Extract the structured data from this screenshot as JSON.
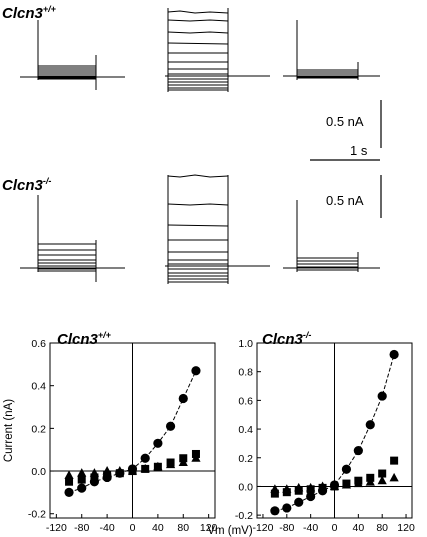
{
  "traces": {
    "wt_label": "Clcn3",
    "wt_sup": "+/+",
    "ko_label": "Clcn3",
    "ko_sup": "-/-",
    "scale_current_wt": "0.5 nA",
    "scale_time": "1 s",
    "scale_current_ko": "0.5 nA"
  },
  "chart_data": [
    {
      "type": "scatter",
      "title": "Clcn3",
      "title_sup": "+/+",
      "xlabel": "Vm (mV)",
      "ylabel": "Current (nA)",
      "xlim": [
        -130,
        130
      ],
      "ylim": [
        -0.22,
        0.6
      ],
      "xticks": [
        -120,
        -80,
        -40,
        0,
        40,
        80,
        120
      ],
      "yticks": [
        -0.2,
        0.0,
        0.2,
        0.4,
        0.6
      ],
      "ytick_labels": [
        "-0.2",
        "0.0",
        "0.2",
        "0.4",
        "0.6"
      ],
      "series": [
        {
          "marker": "circle",
          "connected": true,
          "x": [
            -100,
            -80,
            -60,
            -40,
            -20,
            0,
            20,
            40,
            60,
            80,
            100
          ],
          "y": [
            -0.1,
            -0.08,
            -0.05,
            -0.03,
            -0.01,
            0.01,
            0.06,
            0.13,
            0.21,
            0.34,
            0.47
          ]
        },
        {
          "marker": "square",
          "connected": false,
          "x": [
            -100,
            -80,
            -60,
            -40,
            -20,
            0,
            20,
            40,
            60,
            80,
            100
          ],
          "y": [
            -0.05,
            -0.04,
            -0.03,
            -0.02,
            -0.01,
            0.0,
            0.01,
            0.02,
            0.04,
            0.06,
            0.08
          ]
        },
        {
          "marker": "triangle",
          "connected": false,
          "x": [
            -100,
            -80,
            -60,
            -40,
            -20,
            0,
            20,
            40,
            60,
            80,
            100
          ],
          "y": [
            -0.02,
            -0.01,
            -0.01,
            0.0,
            0.0,
            0.0,
            0.01,
            0.02,
            0.03,
            0.04,
            0.06
          ]
        }
      ]
    },
    {
      "type": "scatter",
      "title": "Clcn3",
      "title_sup": "-/-",
      "xlabel": "Vm (mV)",
      "ylabel": "",
      "xlim": [
        -130,
        130
      ],
      "ylim": [
        -0.22,
        1.0
      ],
      "xticks": [
        -120,
        -80,
        -40,
        0,
        40,
        80,
        120
      ],
      "yticks": [
        -0.2,
        0.0,
        0.2,
        0.4,
        0.6,
        0.8,
        1.0
      ],
      "ytick_labels": [
        "-0.2",
        "0.0",
        "0.2",
        "0.4",
        "0.6",
        "0.8",
        "1.0"
      ],
      "series": [
        {
          "marker": "circle",
          "connected": true,
          "x": [
            -100,
            -80,
            -60,
            -40,
            -20,
            0,
            20,
            40,
            60,
            80,
            100
          ],
          "y": [
            -0.17,
            -0.15,
            -0.11,
            -0.07,
            -0.03,
            0.01,
            0.12,
            0.25,
            0.43,
            0.63,
            0.92
          ]
        },
        {
          "marker": "square",
          "connected": false,
          "x": [
            -100,
            -80,
            -60,
            -40,
            -20,
            0,
            20,
            40,
            60,
            80,
            100
          ],
          "y": [
            -0.05,
            -0.04,
            -0.03,
            -0.02,
            -0.01,
            0.0,
            0.02,
            0.04,
            0.06,
            0.09,
            0.18
          ]
        },
        {
          "marker": "triangle",
          "connected": false,
          "x": [
            -100,
            -80,
            -60,
            -40,
            -20,
            0,
            20,
            40,
            60,
            80,
            100
          ],
          "y": [
            -0.02,
            -0.02,
            -0.01,
            -0.01,
            0.0,
            0.0,
            0.01,
            0.02,
            0.03,
            0.04,
            0.06
          ]
        }
      ]
    }
  ]
}
